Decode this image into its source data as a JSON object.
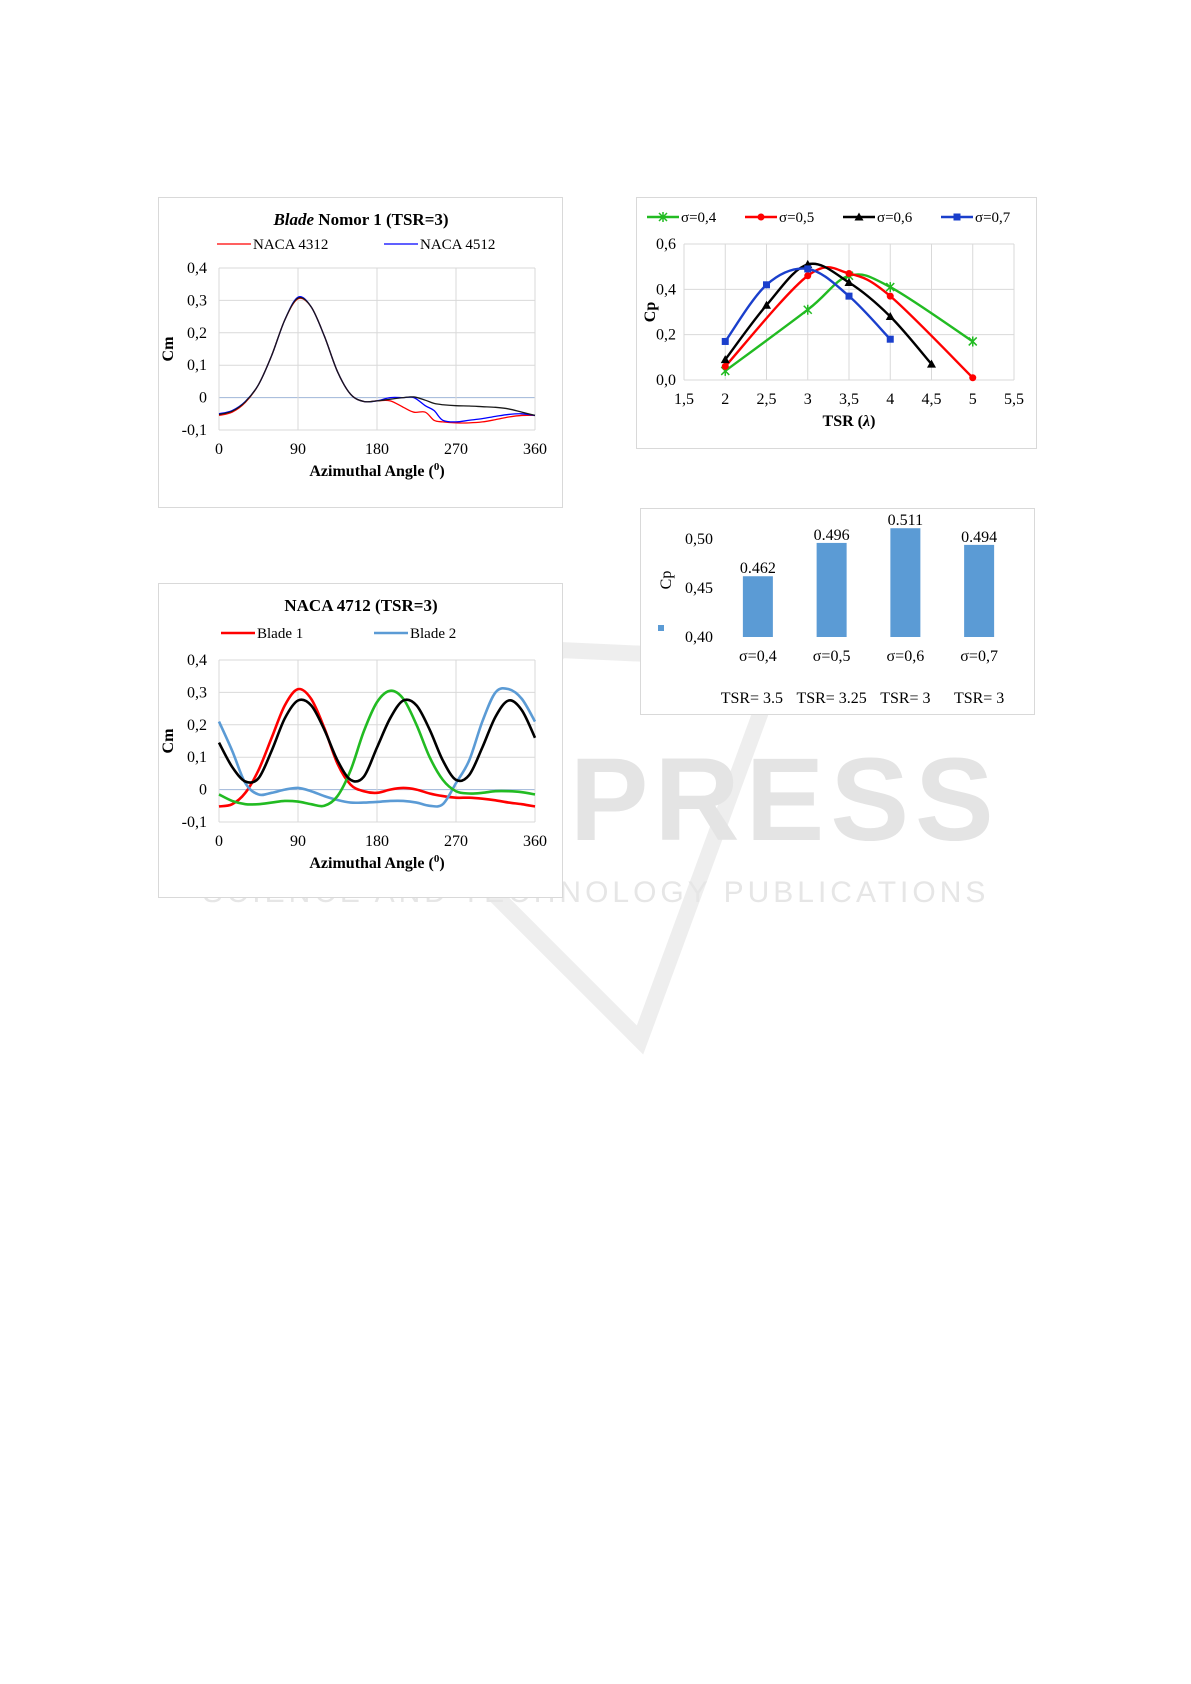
{
  "watermark": {
    "line1": "SCITEPRESS",
    "line2": "SCIENCE AND TECHNOLOGY PUBLICATIONS"
  },
  "chart_data": [
    {
      "id": "chart1",
      "type": "line",
      "title_italic": "Blade",
      "title_rest": " Nomor 1 (TSR=3)",
      "xlabel": "Azimuthal Angle (",
      "xlabel_sup": "0",
      "xlabel_end": ")",
      "ylabel": "Cm",
      "xlim": [
        0,
        360
      ],
      "ylim": [
        -0.1,
        0.4
      ],
      "xticks": [
        "0",
        "90",
        "180",
        "270",
        "360"
      ],
      "yticks": [
        "-0,1",
        "0",
        "0,1",
        "0,2",
        "0,3",
        "0,4"
      ],
      "legend_placement": "top",
      "grid": true,
      "x": [
        0,
        15,
        30,
        45,
        60,
        75,
        90,
        105,
        120,
        135,
        150,
        165,
        180,
        195,
        210,
        222,
        235,
        245,
        255,
        270,
        285,
        300,
        315,
        330,
        345,
        360
      ],
      "series": [
        {
          "name": "NACA 4312",
          "color": "#ff0000",
          "values": [
            -0.055,
            -0.045,
            -0.015,
            0.04,
            0.13,
            0.24,
            0.305,
            0.28,
            0.19,
            0.08,
            0.01,
            -0.012,
            -0.01,
            -0.01,
            -0.03,
            -0.045,
            -0.045,
            -0.07,
            -0.075,
            -0.078,
            -0.078,
            -0.075,
            -0.068,
            -0.06,
            -0.055,
            -0.055
          ]
        },
        {
          "name": "NACA 4512",
          "color": "#0000ff",
          "values": [
            -0.05,
            -0.04,
            -0.012,
            0.04,
            0.13,
            0.24,
            0.31,
            0.28,
            0.19,
            0.08,
            0.01,
            -0.012,
            -0.01,
            0.0,
            0.0,
            0.0,
            -0.025,
            -0.04,
            -0.07,
            -0.075,
            -0.07,
            -0.065,
            -0.058,
            -0.052,
            -0.05,
            -0.055
          ]
        },
        {
          "name": "",
          "color": "#1a1a1a",
          "values": [
            -0.052,
            -0.042,
            -0.013,
            0.04,
            0.13,
            0.24,
            0.307,
            0.28,
            0.19,
            0.08,
            0.01,
            -0.012,
            -0.01,
            -0.005,
            0.0,
            0.002,
            -0.008,
            -0.018,
            -0.022,
            -0.025,
            -0.026,
            -0.028,
            -0.03,
            -0.035,
            -0.045,
            -0.055
          ]
        }
      ]
    },
    {
      "id": "chart2",
      "type": "line",
      "xlabel": "TSR (",
      "xlabel_italic": "λ",
      "xlabel_end": ")",
      "ylabel": "Cp",
      "xlim": [
        1.5,
        5.5
      ],
      "ylim": [
        0,
        0.6
      ],
      "xticks": [
        "1,5",
        "2",
        "2,5",
        "3",
        "3,5",
        "4",
        "4,5",
        "5",
        "5,5"
      ],
      "yticks": [
        "0,0",
        "0,2",
        "0,4",
        "0,6"
      ],
      "legend_placement": "top",
      "grid": true,
      "series": [
        {
          "name": "σ=0,4",
          "color": "#22bb22",
          "marker": "star",
          "x": [
            2,
            3,
            3.5,
            4,
            5
          ],
          "values": [
            0.04,
            0.31,
            0.46,
            0.41,
            0.17
          ]
        },
        {
          "name": "σ=0,5",
          "color": "#ff0000",
          "marker": "circle",
          "x": [
            2,
            3,
            3.5,
            4,
            5
          ],
          "values": [
            0.06,
            0.46,
            0.47,
            0.37,
            0.01
          ]
        },
        {
          "name": "σ=0,6",
          "color": "#000000",
          "marker": "triangle",
          "x": [
            2,
            2.5,
            3,
            3.5,
            4,
            4.5
          ],
          "values": [
            0.09,
            0.33,
            0.51,
            0.43,
            0.28,
            0.07
          ]
        },
        {
          "name": "σ=0,7",
          "color": "#1a3fcc",
          "marker": "square",
          "x": [
            2,
            2.5,
            3,
            3.5,
            4
          ],
          "values": [
            0.17,
            0.42,
            0.49,
            0.37,
            0.18
          ]
        }
      ]
    },
    {
      "id": "chart3",
      "type": "bar",
      "ylabel": "Cp",
      "ylim": [
        0.4,
        0.5
      ],
      "yticks": [
        "0,40",
        "0,45",
        "0,50"
      ],
      "categories": [
        "σ=0,4",
        "σ=0,5",
        "σ=0,6",
        "σ=0,7"
      ],
      "values": [
        0.462,
        0.496,
        0.511,
        0.494
      ],
      "data_labels": [
        "0.462",
        "0.496",
        "0.511",
        "0.494"
      ],
      "tsr_labels": [
        "TSR= 3.5",
        "TSR= 3.25",
        "TSR= 3",
        "TSR= 3"
      ],
      "bar_color": "#5b9bd5",
      "grid": false
    },
    {
      "id": "chart4",
      "type": "line",
      "title": "NACA 4712 (TSR=3)",
      "xlabel": "Azimuthal Angle (",
      "xlabel_sup": "0",
      "xlabel_end": ")",
      "ylabel": "Cm",
      "xlim": [
        0,
        360
      ],
      "ylim": [
        -0.1,
        0.4
      ],
      "xticks": [
        "0",
        "90",
        "180",
        "270",
        "360"
      ],
      "yticks": [
        "-0,1",
        "0",
        "0,1",
        "0,2",
        "0,3",
        "0,4"
      ],
      "legend_placement": "top",
      "grid": true,
      "x": [
        0,
        15,
        30,
        45,
        60,
        75,
        90,
        105,
        120,
        135,
        150,
        165,
        180,
        195,
        210,
        225,
        240,
        255,
        270,
        285,
        300,
        315,
        330,
        345,
        360
      ],
      "series": [
        {
          "name": "Blade 1",
          "color": "#ff0000",
          "values": [
            -0.052,
            -0.045,
            -0.01,
            0.06,
            0.16,
            0.26,
            0.31,
            0.28,
            0.19,
            0.08,
            0.015,
            -0.005,
            -0.01,
            0.0,
            0.005,
            0.0,
            -0.012,
            -0.02,
            -0.025,
            -0.025,
            -0.028,
            -0.033,
            -0.04,
            -0.045,
            -0.052
          ]
        },
        {
          "name": "Blade 2",
          "color": "#5b9bd5",
          "values": [
            0.21,
            0.12,
            0.02,
            -0.015,
            -0.01,
            0.0,
            0.005,
            -0.005,
            -0.02,
            -0.032,
            -0.04,
            -0.04,
            -0.038,
            -0.035,
            -0.035,
            -0.04,
            -0.05,
            -0.045,
            0.02,
            0.09,
            0.21,
            0.3,
            0.31,
            0.28,
            0.21
          ]
        },
        {
          "name": "",
          "color": "#22bb22",
          "values": [
            -0.015,
            -0.035,
            -0.045,
            -0.045,
            -0.04,
            -0.035,
            -0.037,
            -0.045,
            -0.05,
            -0.02,
            0.06,
            0.18,
            0.27,
            0.305,
            0.28,
            0.2,
            0.1,
            0.03,
            -0.005,
            -0.012,
            -0.01,
            -0.005,
            -0.005,
            -0.008,
            -0.015
          ]
        },
        {
          "name": "",
          "color": "#000000",
          "values": [
            0.145,
            0.07,
            0.025,
            0.035,
            0.12,
            0.22,
            0.275,
            0.26,
            0.185,
            0.09,
            0.03,
            0.04,
            0.13,
            0.22,
            0.275,
            0.26,
            0.185,
            0.09,
            0.03,
            0.045,
            0.13,
            0.225,
            0.275,
            0.245,
            0.16
          ]
        }
      ]
    }
  ]
}
